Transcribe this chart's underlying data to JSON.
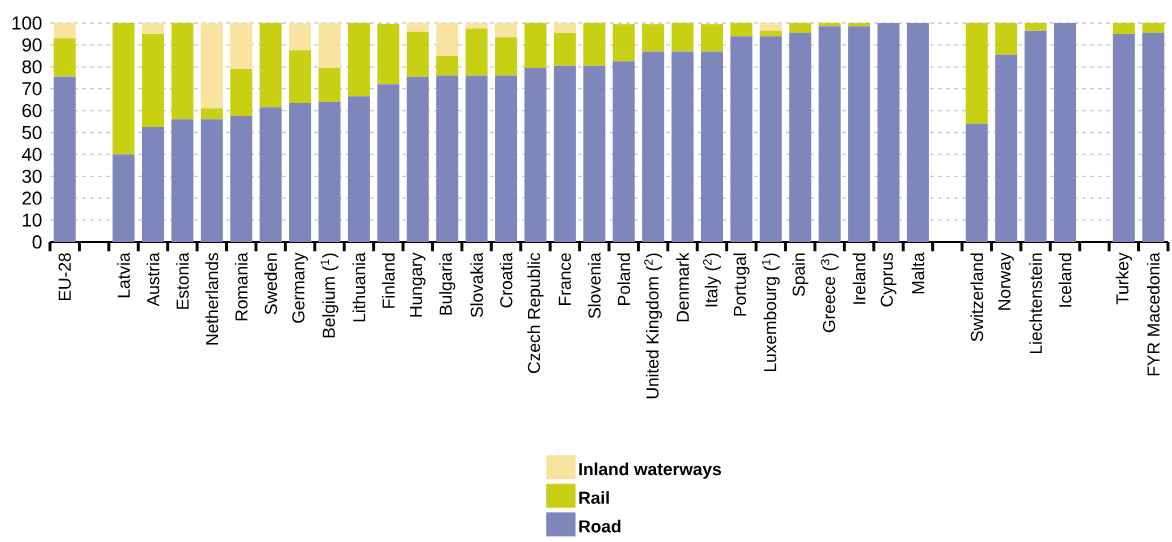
{
  "chart_data": {
    "type": "bar",
    "stacked": true,
    "categories": [
      "EU-28",
      null,
      "Latvia",
      "Austria",
      "Estonia",
      "Netherlands",
      "Romania",
      "Sweden",
      "Germany",
      "Belgium ($^{1}$)",
      "Lithuania",
      "Finland",
      "Hungary",
      "Bulgaria",
      "Slovakia",
      "Croatia",
      "Czech Republic",
      "France",
      "Slovenia",
      "Poland",
      "United Kingdom ($^{2}$)",
      "Denmark",
      "Italy ($^{2}$)",
      "Portugal",
      "Luxembourg ($^{1}$)",
      "Spain",
      "Greece ($^{3}$)",
      "Ireland",
      "Cyprus",
      "Malta",
      null,
      "Switzerland",
      "Norway",
      "Liechtenstein",
      "Iceland",
      null,
      "Turkey",
      "FYR Macedonia"
    ],
    "series": [
      {
        "name": "Road",
        "color": "#7f86bb",
        "values": [
          75.5,
          null,
          40,
          52.5,
          56,
          56,
          57.5,
          61.5,
          63.5,
          64,
          66.5,
          72,
          75.5,
          76,
          76,
          76,
          79.5,
          80.5,
          80.5,
          82.5,
          87,
          87,
          87,
          94,
          94,
          95.5,
          98.5,
          98.5,
          100,
          100,
          null,
          54,
          85.5,
          96.5,
          100,
          null,
          95,
          95.5
        ]
      },
      {
        "name": "Rail",
        "color": "#c8d014",
        "values": [
          17.5,
          null,
          60,
          42.5,
          44,
          5,
          21.5,
          38.5,
          24,
          15.5,
          33.5,
          27.5,
          20.5,
          9,
          21.5,
          17.5,
          20.5,
          15,
          19.5,
          17,
          12.5,
          13,
          12.5,
          6,
          2.5,
          4.5,
          1.5,
          1.5,
          0,
          0,
          null,
          46,
          14.5,
          3.5,
          0,
          null,
          5,
          4.5
        ]
      },
      {
        "name": "Inland waterways",
        "color": "#f9e3a0",
        "values": [
          7,
          null,
          0,
          5,
          0,
          39,
          21,
          0,
          12.5,
          20.5,
          0,
          0,
          4,
          15,
          2.5,
          6.5,
          0,
          4.5,
          0,
          0,
          0,
          0,
          0,
          0,
          3.5,
          0,
          0,
          0,
          0,
          0,
          null,
          0,
          0,
          0,
          0,
          null,
          0,
          0
        ]
      }
    ],
    "ylim": [
      0,
      100
    ],
    "yticks": [
      0,
      10,
      20,
      30,
      40,
      50,
      60,
      70,
      80,
      90,
      100
    ],
    "grid": "y",
    "legend": "bottom"
  }
}
